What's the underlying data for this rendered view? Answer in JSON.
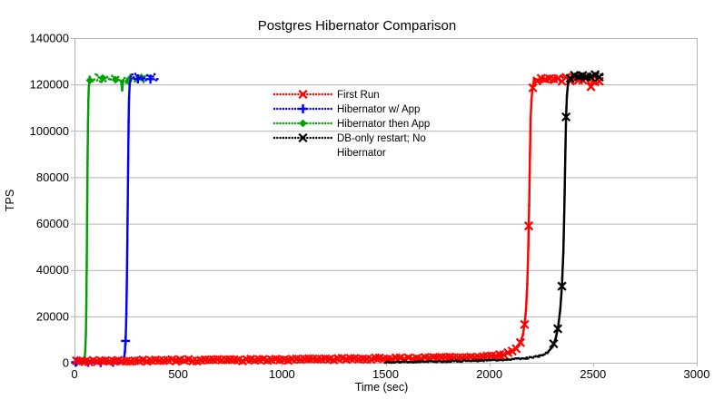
{
  "chart_data": {
    "type": "line",
    "title": "Postgres Hibernator Comparison",
    "xlabel": "Time (sec)",
    "ylabel": "TPS",
    "xlim": [
      0,
      3000
    ],
    "ylim": [
      0,
      140000
    ],
    "x_ticks": [
      0,
      500,
      1000,
      1500,
      2000,
      2500,
      3000
    ],
    "y_ticks": [
      0,
      20000,
      40000,
      60000,
      80000,
      100000,
      120000,
      140000
    ],
    "grid": "horizontal-only",
    "grid_color": "#b3b3b3",
    "text_color": "#000000",
    "background": "#ffffff",
    "legend_position": "upper-center-inside",
    "draw_order": [
      2,
      1,
      0,
      3
    ],
    "series": [
      {
        "name": "First Run",
        "legend_label": "First Run",
        "color": "#ff0000",
        "marker": "x",
        "line_style": "dotted",
        "marker_every_t": 20,
        "marker_phase_t": 10,
        "marker_start_t": 0,
        "jitter_low": 650,
        "jitter_high": 1400,
        "points": [
          [
            0,
            700
          ],
          [
            400,
            950
          ],
          [
            800,
            1150
          ],
          [
            1200,
            1450
          ],
          [
            1600,
            1850
          ],
          [
            1900,
            2300
          ],
          [
            2050,
            3100
          ],
          [
            2100,
            4400
          ],
          [
            2130,
            6300
          ],
          [
            2150,
            8900
          ],
          [
            2162,
            12000
          ],
          [
            2170,
            16500
          ],
          [
            2177,
            23000
          ],
          [
            2183,
            34000
          ],
          [
            2188,
            50000
          ],
          [
            2192,
            68000
          ],
          [
            2196,
            90000
          ],
          [
            2199,
            105000
          ],
          [
            2203,
            113000
          ],
          [
            2208,
            118500
          ],
          [
            2215,
            121500
          ],
          [
            2260,
            122300
          ],
          [
            2320,
            121800
          ],
          [
            2380,
            122400
          ],
          [
            2440,
            121900
          ],
          [
            2470,
            122300
          ],
          [
            2487,
            119000
          ],
          [
            2500,
            122000
          ],
          [
            2530,
            121900
          ]
        ]
      },
      {
        "name": "Hibernator w/ App",
        "legend_label": "Hibernator w/ App",
        "color": "#0000ff",
        "marker": "plus",
        "line_style": "dotted",
        "marker_every_t": 60,
        "marker_phase_t": 6,
        "marker_start_t": 0,
        "jitter_low": 130,
        "jitter_high": 1600,
        "points": [
          [
            0,
            120
          ],
          [
            120,
            170
          ],
          [
            200,
            240
          ],
          [
            232,
            420
          ],
          [
            238,
            1300
          ],
          [
            243,
            4600
          ],
          [
            247,
            11000
          ],
          [
            250,
            21000
          ],
          [
            253,
            38000
          ],
          [
            256,
            62000
          ],
          [
            259,
            88000
          ],
          [
            261,
            104000
          ],
          [
            263,
            114000
          ],
          [
            266,
            120000
          ],
          [
            272,
            122800
          ],
          [
            300,
            123400
          ],
          [
            330,
            122600
          ],
          [
            365,
            123200
          ],
          [
            400,
            122900
          ]
        ]
      },
      {
        "name": "Hibernator then App",
        "legend_label": "Hibernator then App",
        "color": "#00a000",
        "marker": "diamond",
        "line_style": "dotted",
        "marker_every_t": 62,
        "marker_phase_t": 12,
        "marker_start_t": 0,
        "jitter_low": 160,
        "jitter_high": 1800,
        "points": [
          [
            0,
            260
          ],
          [
            30,
            330
          ],
          [
            44,
            650
          ],
          [
            49,
            1900
          ],
          [
            52,
            5200
          ],
          [
            55,
            12500
          ],
          [
            57,
            24000
          ],
          [
            59,
            42000
          ],
          [
            61,
            64000
          ],
          [
            63,
            86000
          ],
          [
            65,
            103000
          ],
          [
            67,
            113000
          ],
          [
            69,
            119000
          ],
          [
            73,
            122000
          ],
          [
            110,
            123000
          ],
          [
            150,
            122200
          ],
          [
            190,
            122800
          ],
          [
            225,
            121500
          ],
          [
            230,
            117500
          ],
          [
            235,
            122000
          ],
          [
            270,
            122700
          ],
          [
            305,
            122300
          ],
          [
            340,
            122600
          ]
        ]
      },
      {
        "name": "DB-only restart; No Hibernator",
        "legend_label": "DB-only restart; No\nHibernator",
        "color": "#000000",
        "marker": "x",
        "line_style": "dotted",
        "marker_every_t": 20,
        "marker_phase_t": 10,
        "marker_start_t": 2305,
        "jitter_low": 300,
        "jitter_high": 1200,
        "points": [
          [
            1500,
            250
          ],
          [
            1650,
            380
          ],
          [
            1800,
            580
          ],
          [
            1950,
            880
          ],
          [
            2080,
            1350
          ],
          [
            2180,
            2000
          ],
          [
            2240,
            2800
          ],
          [
            2280,
            4300
          ],
          [
            2305,
            6900
          ],
          [
            2320,
            10500
          ],
          [
            2332,
            15500
          ],
          [
            2342,
            23000
          ],
          [
            2350,
            33000
          ],
          [
            2357,
            48000
          ],
          [
            2362,
            68000
          ],
          [
            2366,
            88000
          ],
          [
            2370,
            106000
          ],
          [
            2374,
            115000
          ],
          [
            2379,
            120000
          ],
          [
            2390,
            122800
          ],
          [
            2430,
            124000
          ],
          [
            2470,
            123300
          ],
          [
            2510,
            124100
          ],
          [
            2545,
            123600
          ]
        ]
      }
    ]
  }
}
